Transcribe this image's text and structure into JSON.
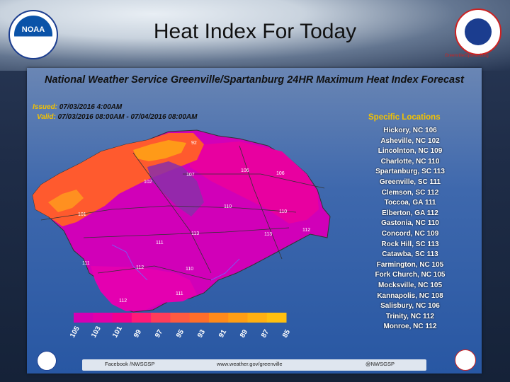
{
  "slide": {
    "title": "Heat Index For Today",
    "nws_caption": "Greenville/Spartanburg",
    "noaa_logo_text": "NOAA"
  },
  "map": {
    "title": "National Weather Service Greenville/Spartanburg 24HR Maximum Heat Index Forecast",
    "issued_label": "Issued:",
    "issued_value": "07/03/2016 4:00AM",
    "valid_label": "Valid:",
    "valid_value": "07/03/2016 08:00AM - 07/04/2016 08:00AM",
    "specific_title": "Specific Locations",
    "locations": [
      "Hickory, NC 106",
      "Asheville, NC 102",
      "Lincolnton, NC 109",
      "Charlotte, NC 110",
      "Spartanburg, SC 113",
      "Greenville, SC 111",
      "Clemson, SC 112",
      "Toccoa, GA 111",
      "Elberton, GA 112",
      "Gastonia, NC 110",
      "Concord, NC 109",
      "Rock Hill, SC 113",
      "Catawba, SC 113",
      "Farmington, NC 105",
      "Fork Church, NC 105",
      "Mocksville, NC 105",
      "Kannapolis, NC 108",
      "Salisbury, NC 106",
      "Trinity, NC 112",
      "Monroe, NC 112"
    ],
    "map_labels": [
      "92",
      "107",
      "102",
      "106",
      "106",
      "101",
      "110",
      "110",
      "112",
      "113",
      "113",
      "111",
      "111",
      "112",
      "110",
      "111",
      "112"
    ],
    "legend_ticks": [
      "105",
      "103",
      "101",
      "99",
      "97",
      "95",
      "93",
      "91",
      "89",
      "87",
      "85"
    ],
    "legend_colors": [
      "#d400b4",
      "#e200a8",
      "#f00090",
      "#ff1a78",
      "#ff3c5a",
      "#ff5a40",
      "#ff6e2a",
      "#ff8a1a",
      "#ff9e14",
      "#ffb012",
      "#ffc010"
    ],
    "footer": {
      "facebook": "Facebook /NWSGSP",
      "website": "www.weather.gov/greenville",
      "twitter": "@NWSGSP"
    }
  }
}
